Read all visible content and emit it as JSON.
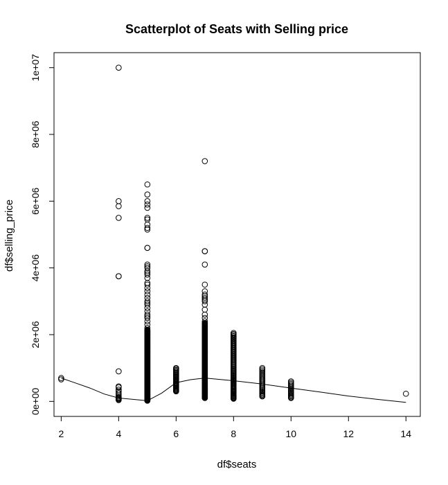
{
  "chart_data": {
    "type": "scatter",
    "title": "Scatterplot of Seats with Selling price",
    "xlabel": "df$seats",
    "ylabel": "df$selling_price",
    "xlim": [
      1.75,
      14.5
    ],
    "ylim": [
      -450000,
      10450000
    ],
    "x_ticks": [
      2,
      4,
      6,
      8,
      10,
      12,
      14
    ],
    "y_ticks": [
      0,
      2000000,
      4000000,
      6000000,
      8000000,
      10000000
    ],
    "y_tick_labels": [
      "0e+00",
      "2e+06",
      "4e+06",
      "6e+06",
      "8e+06",
      "1e+07"
    ],
    "grid": false,
    "columns": [
      {
        "seats": 2,
        "values": [
          700000,
          660000
        ]
      },
      {
        "seats": 4,
        "values": [
          10000000,
          6000000,
          5850000,
          5500000,
          3750000,
          3750000,
          900000,
          450000,
          420000,
          350000,
          300000,
          250000,
          200000,
          150000,
          120000,
          100000,
          80000,
          60000,
          40000
        ]
      },
      {
        "seats": 5,
        "ranges": [
          [
            20000,
            2150000,
            260
          ]
        ],
        "values": [
          2200000,
          2300000,
          2400000,
          2500000,
          2550000,
          2600000,
          2700000,
          2800000,
          2900000,
          2950000,
          3000000,
          3100000,
          3200000,
          3300000,
          3400000,
          3500000,
          3550000,
          3700000,
          3800000,
          3850000,
          3900000,
          4000000,
          4050000,
          4100000,
          4600000,
          4600000,
          5150000,
          5200000,
          5300000,
          5450000,
          5500000,
          5800000,
          5900000,
          6000000,
          6200000,
          6500000
        ]
      },
      {
        "seats": 6,
        "ranges": [
          [
            300000,
            1000000,
            28
          ]
        ],
        "values": []
      },
      {
        "seats": 7,
        "ranges": [
          [
            100000,
            2350000,
            150
          ]
        ],
        "values": [
          2400000,
          2500000,
          2600000,
          2750000,
          2900000,
          3000000,
          3050000,
          3100000,
          3150000,
          3200000,
          3300000,
          3500000,
          4100000,
          4500000,
          4500000,
          7200000
        ]
      },
      {
        "seats": 8,
        "ranges": [
          [
            80000,
            2050000,
            70
          ]
        ],
        "values": []
      },
      {
        "seats": 9,
        "ranges": [
          [
            150000,
            1000000,
            24
          ]
        ],
        "values": []
      },
      {
        "seats": 10,
        "ranges": [
          [
            100000,
            600000,
            16
          ]
        ],
        "values": []
      },
      {
        "seats": 14,
        "values": [
          230000
        ]
      }
    ],
    "smooth_line": {
      "x": [
        2,
        2.5,
        3,
        3.5,
        4,
        4.5,
        5,
        5.5,
        6,
        6.5,
        7,
        8,
        9,
        10,
        11,
        12,
        13,
        14
      ],
      "y": [
        700000,
        550000,
        400000,
        220000,
        100000,
        60000,
        20000,
        250000,
        560000,
        650000,
        700000,
        620000,
        520000,
        400000,
        280000,
        160000,
        60000,
        -30000
      ]
    }
  }
}
